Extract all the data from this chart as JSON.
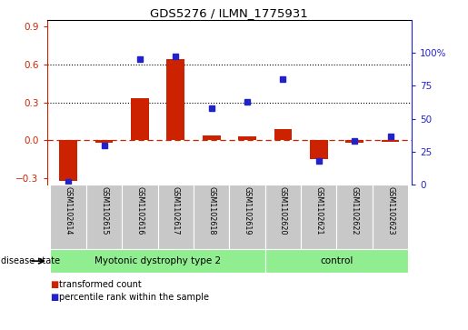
{
  "title": "GDS5276 / ILMN_1775931",
  "samples": [
    "GSM1102614",
    "GSM1102615",
    "GSM1102616",
    "GSM1102617",
    "GSM1102618",
    "GSM1102619",
    "GSM1102620",
    "GSM1102621",
    "GSM1102622",
    "GSM1102623"
  ],
  "red_values": [
    -0.32,
    -0.02,
    0.33,
    0.64,
    0.04,
    0.03,
    0.09,
    -0.15,
    -0.02,
    -0.01
  ],
  "blue_values": [
    2,
    30,
    95,
    97,
    58,
    63,
    80,
    18,
    33,
    37
  ],
  "disease_groups": [
    {
      "label": "Myotonic dystrophy type 2",
      "start": 0,
      "end": 6
    },
    {
      "label": "control",
      "start": 6,
      "end": 10
    }
  ],
  "ylim_left": [
    -0.35,
    0.95
  ],
  "ylim_right": [
    0,
    125
  ],
  "yticks_left": [
    -0.3,
    0.0,
    0.3,
    0.6,
    0.9
  ],
  "yticks_right": [
    0,
    25,
    50,
    75,
    100
  ],
  "hlines": [
    0.3,
    0.6
  ],
  "red_color": "#CC2200",
  "blue_color": "#2222CC",
  "zero_line_color": "#CC2200",
  "grid_color": "#000000",
  "legend_items": [
    "transformed count",
    "percentile rank within the sample"
  ],
  "disease_state_label": "disease state",
  "group_bg_color": "#90EE90",
  "sample_bg_color": "#C8C8C8",
  "bar_width": 0.5
}
